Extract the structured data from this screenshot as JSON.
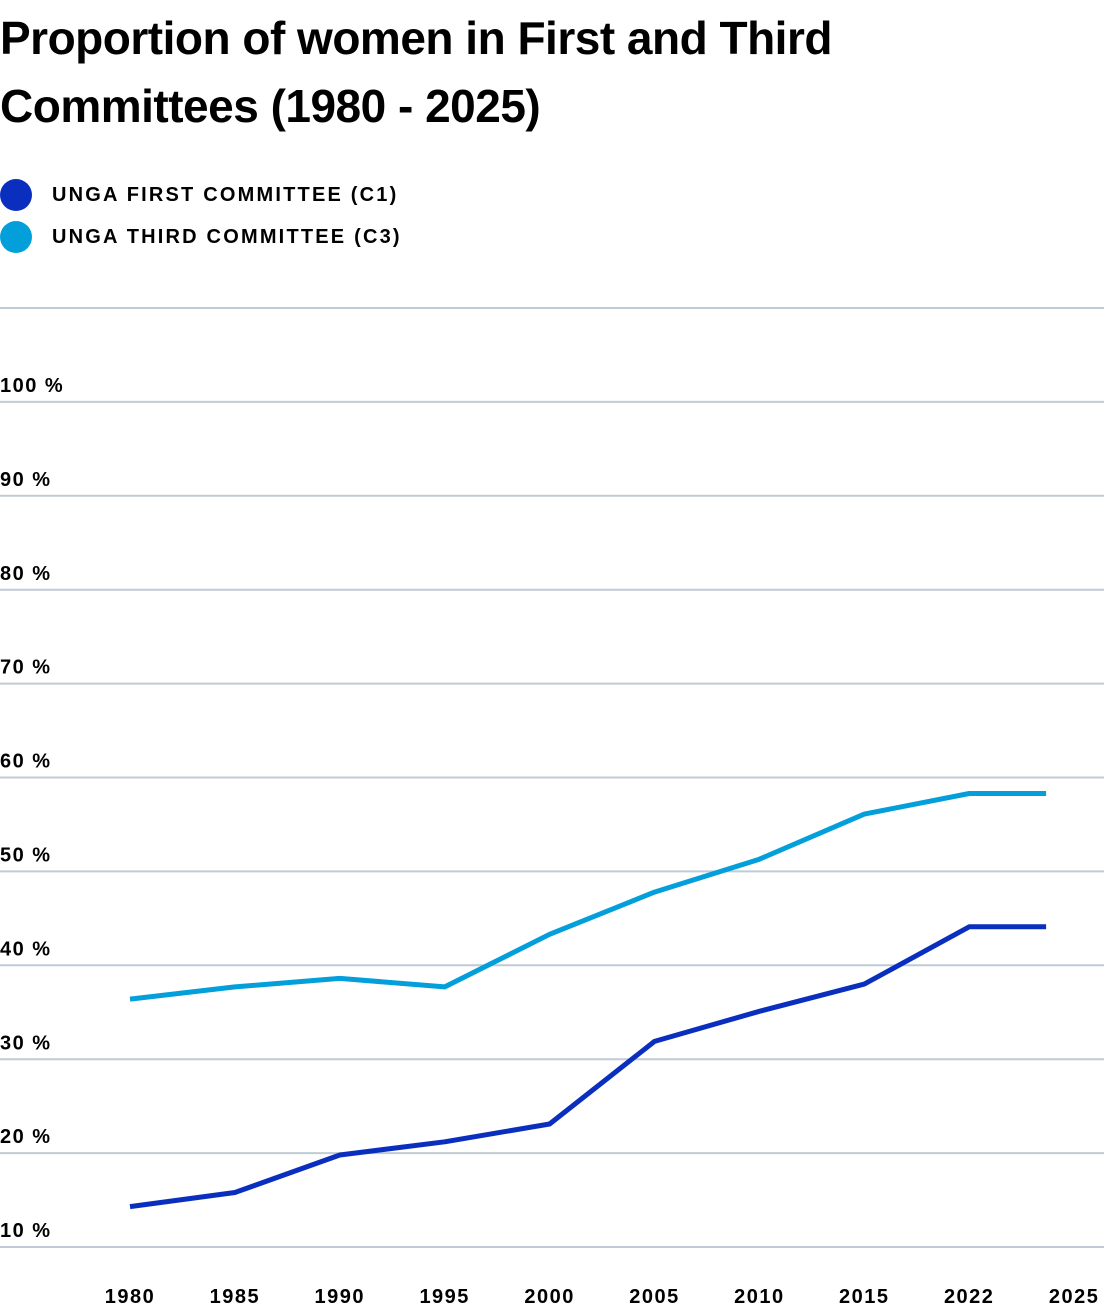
{
  "chart_data": {
    "type": "line",
    "title": "Proportion of women in First and Third Committees (1980 - 2025)",
    "x": [
      "1980",
      "1985",
      "1990",
      "1995",
      "2000",
      "2005",
      "2010",
      "2015",
      "2022",
      "2025"
    ],
    "yticks": [
      "10 %",
      "20 %",
      "30 %",
      "40 %",
      "50 %",
      "60 %",
      "70 %",
      "80 %",
      "90 %",
      "100 %"
    ],
    "ylim": [
      5,
      105
    ],
    "grid": true,
    "legend_position": "top-left",
    "series": [
      {
        "name": "UNGA FIRST COMMITTEE (C1)",
        "color": "#0a2fbf",
        "points": [
          {
            "x": "1980",
            "y": 9.3
          },
          {
            "x": "1985",
            "y": 10.8
          },
          {
            "x": "1990",
            "y": 14.8
          },
          {
            "x": "1995",
            "y": 16.2
          },
          {
            "x": "2000",
            "y": 18.1
          },
          {
            "x": "2005",
            "y": 26.9
          },
          {
            "x": "2010",
            "y": 30.1
          },
          {
            "x": "2015",
            "y": 33.0
          },
          {
            "x": "2022",
            "y": 39.1
          },
          {
            "x": "2025",
            "y": 39.1
          }
        ]
      },
      {
        "name": "UNGA THIRD COMMITTEE (C3)",
        "color": "#039fdb",
        "points": [
          {
            "x": "1980",
            "y": 31.4
          },
          {
            "x": "1985",
            "y": 32.7
          },
          {
            "x": "1990",
            "y": 33.6
          },
          {
            "x": "1995",
            "y": 32.7
          },
          {
            "x": "2000",
            "y": 38.3
          },
          {
            "x": "2005",
            "y": 42.8
          },
          {
            "x": "2010",
            "y": 46.3
          },
          {
            "x": "2015",
            "y": 51.1
          },
          {
            "x": "2022",
            "y": 53.3
          },
          {
            "x": "2025",
            "y": 53.3
          }
        ]
      }
    ]
  }
}
